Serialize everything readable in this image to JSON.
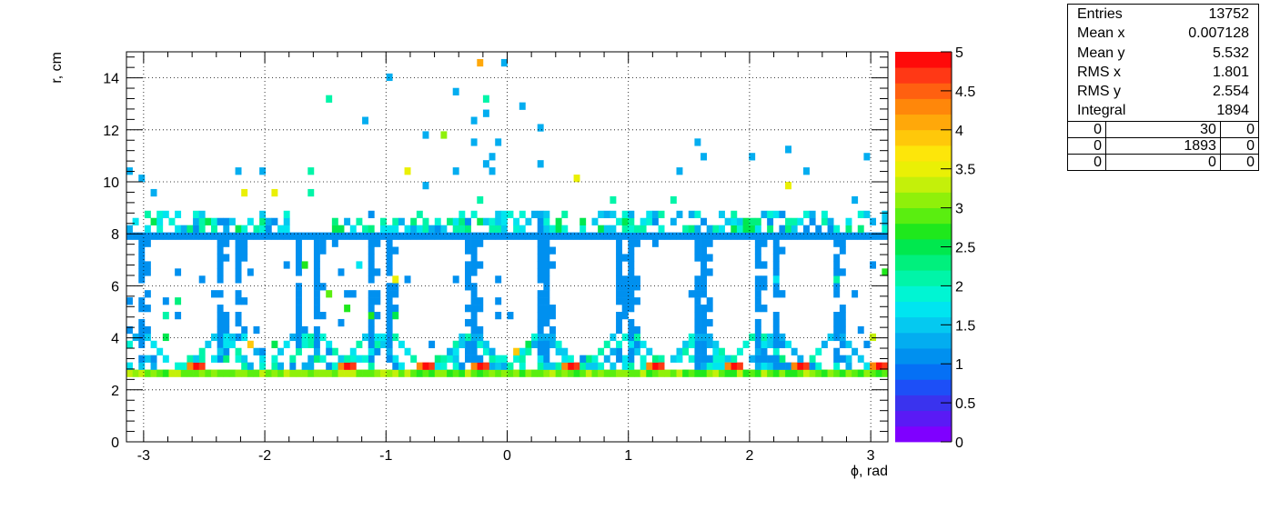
{
  "chart_data": {
    "type": "heatmap",
    "title": "",
    "xlabel": "ϕ, rad",
    "ylabel": "r, cm",
    "xlim": [
      -3.1416,
      3.1416
    ],
    "ylim": [
      0,
      15
    ],
    "x_ticks": [
      "-3",
      "-2",
      "-1",
      "0",
      "1",
      "2",
      "3"
    ],
    "y_ticks": [
      "0",
      "2",
      "4",
      "6",
      "8",
      "10",
      "12",
      "14"
    ],
    "zlim": [
      0,
      5
    ],
    "z_ticks": [
      "0",
      "0.5",
      "1",
      "1.5",
      "2",
      "2.5",
      "3",
      "3.5",
      "4",
      "4.5",
      "5"
    ],
    "grid": true,
    "colormap": [
      "#7f00ff",
      "#5a1af5",
      "#3a33ee",
      "#1d4ff7",
      "#0570f5",
      "#0090ef",
      "#03adf0",
      "#05c9f0",
      "#00e5f0",
      "#00f5d3",
      "#00f5a8",
      "#00f07d",
      "#00e84e",
      "#1fe81c",
      "#5aee10",
      "#8ff00a",
      "#c4f00a",
      "#eaf005",
      "#fde60a",
      "#ffc80a",
      "#ffa80a",
      "#ff870a",
      "#ff6010",
      "#ff3815",
      "#ff0a0a"
    ],
    "bins_x": 126,
    "bins_y": 54,
    "bands": [
      {
        "description": "inner ring",
        "r": 2.75,
        "value": 3.0
      },
      {
        "description": "inner ring peaks",
        "r": 2.95,
        "phi": [
          -2.59,
          -1.33,
          -0.67,
          -0.24,
          0.53,
          1.2,
          1.85,
          2.4,
          3.05
        ],
        "value": 5.0
      },
      {
        "description": "ladder boundary",
        "r_range": [
          7.8,
          8.5
        ],
        "value": 1.2
      },
      {
        "description": "ladders",
        "phi": [
          -3.0,
          -2.38,
          -2.21,
          -1.74,
          -1.59,
          -1.11,
          -0.95,
          -0.34,
          -0.28,
          0.28,
          0.34,
          0.94,
          1.04,
          1.57,
          1.64,
          2.08,
          2.22,
          2.72
        ],
        "r_range": [
          3.1,
          7.8
        ],
        "value": 1.0
      }
    ],
    "sparse_points": [
      [
        -0.23,
        14.5,
        4.0
      ],
      [
        -0.02,
        14.5,
        1.2
      ],
      [
        -0.95,
        13.9,
        1.2
      ],
      [
        -0.4,
        13.6,
        1.2
      ],
      [
        -1.45,
        13.3,
        2.0
      ],
      [
        -0.18,
        13.1,
        2.0
      ],
      [
        0.14,
        13.0,
        1.2
      ],
      [
        -0.15,
        12.7,
        1.2
      ],
      [
        -1.18,
        12.3,
        1.2
      ],
      [
        -0.28,
        12.3,
        1.2
      ],
      [
        0.29,
        12.2,
        1.2
      ],
      [
        -0.68,
        11.9,
        1.2
      ],
      [
        -0.5,
        11.7,
        3.0
      ],
      [
        -0.28,
        11.5,
        1.2
      ],
      [
        1.58,
        11.5,
        1.2
      ],
      [
        -0.09,
        11.4,
        1.2
      ],
      [
        1.6,
        11.0,
        1.2
      ],
      [
        -0.1,
        11.1,
        1.2
      ],
      [
        2.31,
        11.2,
        1.2
      ],
      [
        2.98,
        10.9,
        1.2
      ],
      [
        2.0,
        10.9,
        1.2
      ],
      [
        -0.15,
        10.8,
        1.2
      ],
      [
        0.28,
        10.6,
        1.2
      ],
      [
        -3.1,
        10.5,
        1.2
      ],
      [
        -1.63,
        10.5,
        2.0
      ],
      [
        -0.8,
        10.5,
        3.5
      ],
      [
        -2.02,
        10.4,
        1.2
      ],
      [
        -0.13,
        10.5,
        1.2
      ],
      [
        -2.22,
        10.3,
        1.2
      ],
      [
        -0.41,
        10.5,
        1.2
      ],
      [
        2.45,
        10.5,
        1.2
      ],
      [
        -3.0,
        10.1,
        1.2
      ],
      [
        1.44,
        10.3,
        1.2
      ],
      [
        0.59,
        10.0,
        3.5
      ],
      [
        2.3,
        9.9,
        3.5
      ],
      [
        -2.18,
        9.7,
        3.5
      ],
      [
        -1.6,
        9.7,
        2.0
      ],
      [
        -0.68,
        9.9,
        1.2
      ],
      [
        -1.9,
        9.5,
        3.5
      ],
      [
        -2.9,
        9.5,
        1.2
      ],
      [
        0.86,
        9.3,
        2.0
      ],
      [
        -0.24,
        9.3,
        2.0
      ],
      [
        1.36,
        9.4,
        2.0
      ],
      [
        2.87,
        9.4,
        1.2
      ]
    ]
  },
  "stats": {
    "rows": [
      {
        "label": "Entries",
        "value": "13752"
      },
      {
        "label": "Mean x",
        "value": "0.007128"
      },
      {
        "label": "Mean y",
        "value": "5.532"
      },
      {
        "label": "RMS x",
        "value": "1.801"
      },
      {
        "label": "RMS y",
        "value": "2.554"
      },
      {
        "label": "Integral",
        "value": "1894"
      }
    ],
    "grid": [
      [
        "0",
        "30",
        "0"
      ],
      [
        "0",
        "1893",
        "0"
      ],
      [
        "0",
        "0",
        "0"
      ]
    ]
  }
}
